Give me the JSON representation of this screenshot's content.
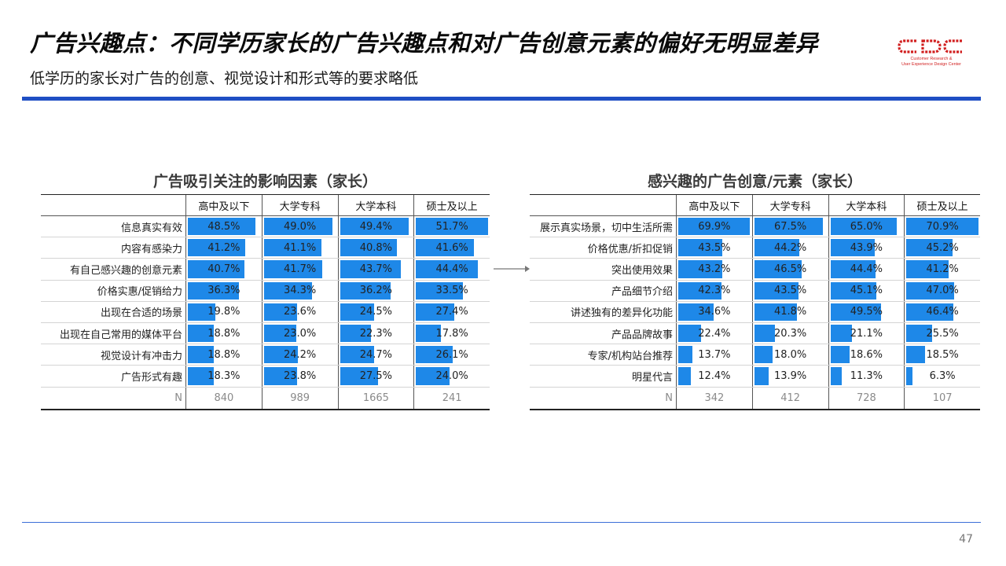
{
  "header": {
    "title": "广告兴趣点：不同学历家长的广告兴趣点和对广告创意元素的偏好无明显差异",
    "subtitle": "低学历的家长对广告的创意、视觉设计和形式等的要求略低"
  },
  "logo": {
    "mark": "CDC",
    "line1": "Customer Research &",
    "line2": "User Experience Design Center"
  },
  "footer": {
    "page_number": "47"
  },
  "colors": {
    "bar": "#1e88e8",
    "rule": "#1f4fc4",
    "logo": "#d11f1f"
  },
  "chart_data": [
    {
      "type": "table",
      "title": "广告吸引关注的影响因素（家长）",
      "columns": [
        "高中及以下",
        "大学专科",
        "大学本科",
        "硕士及以上"
      ],
      "rows": [
        {
          "label": "信息真实有效",
          "values": [
            48.5,
            49.0,
            49.4,
            51.7
          ]
        },
        {
          "label": "内容有感染力",
          "values": [
            41.2,
            41.1,
            40.8,
            41.6
          ]
        },
        {
          "label": "有自己感兴趣的创意元素",
          "values": [
            40.7,
            41.7,
            43.7,
            44.4
          ]
        },
        {
          "label": "价格实惠/促销给力",
          "values": [
            36.3,
            34.3,
            36.2,
            33.5
          ]
        },
        {
          "label": "出现在合适的场景",
          "values": [
            19.8,
            23.6,
            24.5,
            27.4
          ]
        },
        {
          "label": "出现在自己常用的媒体平台",
          "values": [
            18.8,
            23.0,
            22.3,
            17.8
          ]
        },
        {
          "label": "视觉设计有冲击力",
          "values": [
            18.8,
            24.2,
            24.7,
            26.1
          ]
        },
        {
          "label": "广告形式有趣",
          "values": [
            18.3,
            23.8,
            27.5,
            24.0
          ]
        }
      ],
      "n_label": "N",
      "n_values": [
        "840",
        "989",
        "1665",
        "241"
      ],
      "scale_max": 51.7
    },
    {
      "type": "table",
      "title": "感兴趣的广告创意/元素（家长）",
      "columns": [
        "高中及以下",
        "大学专科",
        "大学本科",
        "硕士及以上"
      ],
      "rows": [
        {
          "label": "展示真实场景，切中生活所需",
          "values": [
            69.9,
            67.5,
            65.0,
            70.9
          ]
        },
        {
          "label": "价格优惠/折扣促销",
          "values": [
            43.5,
            44.2,
            43.9,
            45.2
          ]
        },
        {
          "label": "突出使用效果",
          "values": [
            43.2,
            46.5,
            44.4,
            41.2
          ]
        },
        {
          "label": "产品细节介绍",
          "values": [
            42.3,
            43.5,
            45.1,
            47.0
          ]
        },
        {
          "label": "讲述独有的差异化功能",
          "values": [
            34.6,
            41.8,
            49.5,
            46.4
          ]
        },
        {
          "label": "产品品牌故事",
          "values": [
            22.4,
            20.3,
            21.1,
            25.5
          ]
        },
        {
          "label": "专家/机构站台推荐",
          "values": [
            13.7,
            18.0,
            18.6,
            18.5
          ]
        },
        {
          "label": "明星代言",
          "values": [
            12.4,
            13.9,
            11.3,
            6.3
          ]
        }
      ],
      "n_label": "N",
      "n_values": [
        "342",
        "412",
        "728",
        "107"
      ],
      "scale_max": 70.9
    }
  ]
}
